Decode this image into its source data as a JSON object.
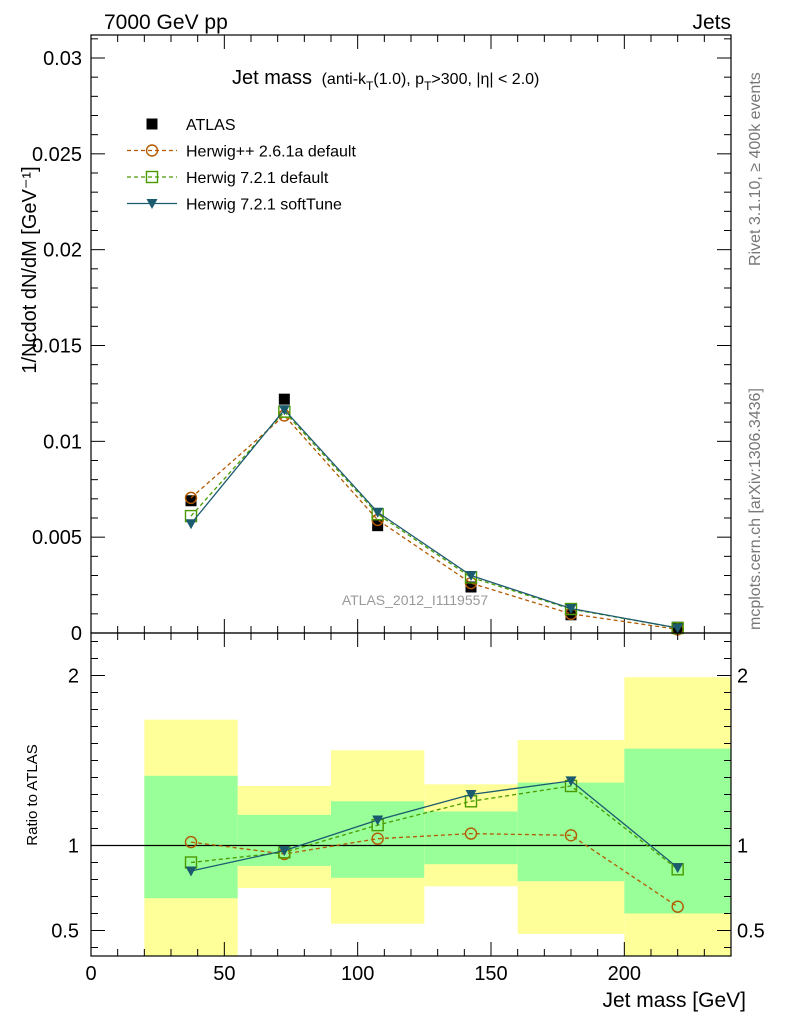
{
  "header": {
    "left": "7000 GeV pp",
    "right": "Jets"
  },
  "side": {
    "top": "Rivet 3.1.10, ≥ 400k events",
    "bottom": "mcplots.cern.ch [arXiv:1306.3436]"
  },
  "chart_data": [
    {
      "type": "line",
      "title": "Jet mass",
      "title_detail_parts": [
        "(anti-k",
        "T",
        "(1.0), p",
        "T",
        ">300, |η| < 2.0)"
      ],
      "ylabel": "1/Ncdot dN/dM [GeV⁻¹]",
      "watermark": "ATLAS_2012_I1119557",
      "xlim": [
        0,
        240
      ],
      "ylim": [
        0,
        0.0312
      ],
      "y_ticks": [
        "0",
        "0.005",
        "0.01",
        "0.015",
        "0.02",
        "0.025",
        "0.03"
      ],
      "legend_position": "top-left",
      "x": [
        37.5,
        72.5,
        107.5,
        142.5,
        180,
        220
      ],
      "series": [
        {
          "name": "ATLAS",
          "color": "#000000",
          "marker": "square-filled",
          "values": [
            0.0069,
            0.0122,
            0.0056,
            0.0024,
            0.00095,
            0.0003
          ]
        },
        {
          "name": "Herwig++ 2.6.1a default",
          "color": "#b35900",
          "marker": "circle-open",
          "dash": true,
          "values": [
            0.00705,
            0.01135,
            0.0059,
            0.0026,
            0.001,
            0.00019
          ]
        },
        {
          "name": "Herwig 7.2.1 default",
          "color": "#4a9a00",
          "marker": "square-open",
          "dash": true,
          "values": [
            0.0061,
            0.01155,
            0.0062,
            0.0029,
            0.00125,
            0.00026
          ]
        },
        {
          "name": "Herwig 7.2.1 softTune",
          "color": "#1c5a6e",
          "marker": "triangle-down-filled",
          "dash": false,
          "values": [
            0.0057,
            0.01165,
            0.0063,
            0.003,
            0.00128,
            0.00026
          ]
        }
      ]
    },
    {
      "type": "line",
      "title": "",
      "xlabel": "Jet mass [GeV]",
      "ylabel": "Ratio to ATLAS",
      "xlim": [
        0,
        240
      ],
      "ylim": [
        0.35,
        2.25
      ],
      "x_ticks": [
        "0",
        "50",
        "100",
        "150",
        "200"
      ],
      "y_ticks": [
        "0.5",
        "1",
        "2"
      ],
      "reference_line": 1,
      "bands": [
        {
          "x_range": [
            20,
            55
          ],
          "green": [
            0.69,
            1.41
          ],
          "yellow": [
            0.35,
            1.74
          ]
        },
        {
          "x_range": [
            55,
            90
          ],
          "green": [
            0.88,
            1.18
          ],
          "yellow": [
            0.75,
            1.35
          ]
        },
        {
          "x_range": [
            90,
            125
          ],
          "green": [
            0.81,
            1.26
          ],
          "yellow": [
            0.54,
            1.56
          ]
        },
        {
          "x_range": [
            125,
            160
          ],
          "green": [
            0.89,
            1.2
          ],
          "yellow": [
            0.76,
            1.36
          ]
        },
        {
          "x_range": [
            160,
            200
          ],
          "green": [
            0.79,
            1.37
          ],
          "yellow": [
            0.48,
            1.62
          ]
        },
        {
          "x_range": [
            200,
            240
          ],
          "green": [
            0.6,
            1.57
          ],
          "yellow": [
            0.35,
            1.99
          ]
        }
      ],
      "x": [
        37.5,
        72.5,
        107.5,
        142.5,
        180,
        220
      ],
      "series": [
        {
          "name": "Herwig++ 2.6.1a default",
          "color": "#b35900",
          "marker": "circle-open",
          "dash": true,
          "values": [
            1.02,
            0.95,
            1.04,
            1.07,
            1.06,
            0.64
          ]
        },
        {
          "name": "Herwig 7.2.1 default",
          "color": "#4a9a00",
          "marker": "square-open",
          "dash": true,
          "values": [
            0.9,
            0.96,
            1.12,
            1.26,
            1.35,
            0.86
          ]
        },
        {
          "name": "Herwig 7.2.1 softTune",
          "color": "#1c5a6e",
          "marker": "triangle-down-filled",
          "dash": false,
          "values": [
            0.85,
            0.97,
            1.15,
            1.3,
            1.38,
            0.87
          ]
        }
      ]
    }
  ]
}
